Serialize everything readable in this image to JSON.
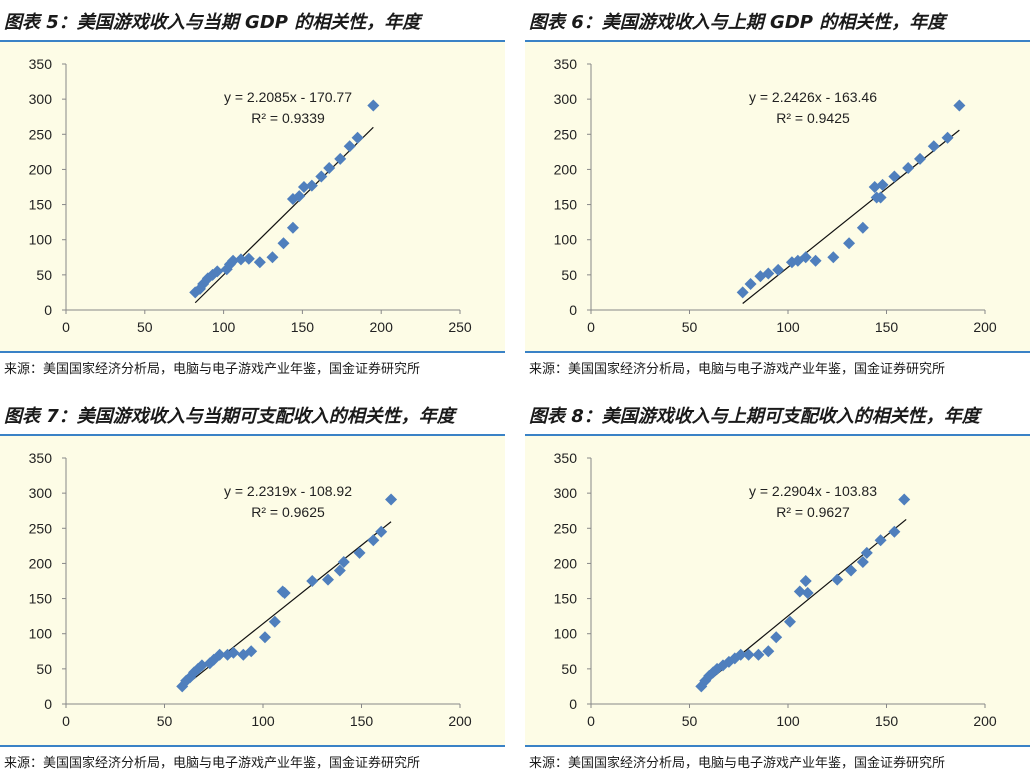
{
  "chart_data": [
    {
      "type": "scatter",
      "title": "图表 5：美国游戏收入与当期 GDP 的相关性，年度",
      "source": "来源：美国国家经济分析局，电脑与电子游戏产业年鉴，国金证券研究所",
      "xlim": [
        0,
        250
      ],
      "ylim": [
        0,
        350
      ],
      "xticks": [
        0,
        50,
        100,
        150,
        200,
        250
      ],
      "yticks": [
        0,
        50,
        100,
        150,
        200,
        250,
        300,
        350
      ],
      "equation": "y = 2.2085x - 170.77",
      "r_squared": "R² = 0.9339",
      "trendline": {
        "slope": 2.2085,
        "intercept": -170.77,
        "x_range": [
          82,
          195
        ]
      },
      "marker_color": "#4f7fbd",
      "points": [
        [
          82,
          25
        ],
        [
          85,
          30
        ],
        [
          87,
          37
        ],
        [
          90,
          45
        ],
        [
          93,
          50
        ],
        [
          96,
          55
        ],
        [
          102,
          58
        ],
        [
          104,
          65
        ],
        [
          106,
          70
        ],
        [
          111,
          72
        ],
        [
          116,
          73
        ],
        [
          123,
          68
        ],
        [
          131,
          75
        ],
        [
          138,
          95
        ],
        [
          144,
          117
        ],
        [
          144,
          158
        ],
        [
          148,
          162
        ],
        [
          151,
          175
        ],
        [
          156,
          177
        ],
        [
          162,
          190
        ],
        [
          167,
          202
        ],
        [
          174,
          215
        ],
        [
          180,
          233
        ],
        [
          185,
          245
        ],
        [
          195,
          291
        ]
      ]
    },
    {
      "type": "scatter",
      "title": "图表 6：美国游戏收入与上期 GDP 的相关性，年度",
      "source": "来源：美国国家经济分析局，电脑与电子游戏产业年鉴，国金证券研究所",
      "xlim": [
        0,
        200
      ],
      "ylim": [
        0,
        350
      ],
      "xticks": [
        0,
        50,
        100,
        150,
        200
      ],
      "yticks": [
        0,
        50,
        100,
        150,
        200,
        250,
        300,
        350
      ],
      "equation": "y = 2.2426x - 163.46",
      "r_squared": "R² = 0.9425",
      "trendline": {
        "slope": 2.2426,
        "intercept": -163.46,
        "x_range": [
          77,
          187
        ]
      },
      "marker_color": "#4f7fbd",
      "points": [
        [
          77,
          25
        ],
        [
          81,
          37
        ],
        [
          86,
          48
        ],
        [
          90,
          52
        ],
        [
          95,
          57
        ],
        [
          102,
          68
        ],
        [
          105,
          70
        ],
        [
          109,
          75
        ],
        [
          114,
          70
        ],
        [
          123,
          75
        ],
        [
          131,
          95
        ],
        [
          138,
          117
        ],
        [
          144,
          175
        ],
        [
          145,
          160
        ],
        [
          147,
          160
        ],
        [
          148,
          178
        ],
        [
          154,
          190
        ],
        [
          161,
          202
        ],
        [
          167,
          215
        ],
        [
          174,
          233
        ],
        [
          181,
          245
        ],
        [
          187,
          291
        ]
      ]
    },
    {
      "type": "scatter",
      "title": "图表 7：美国游戏收入与当期可支配收入的相关性，年度",
      "source": "来源：美国国家经济分析局，电脑与电子游戏产业年鉴，国金证券研究所",
      "xlim": [
        0,
        200
      ],
      "ylim": [
        0,
        350
      ],
      "xticks": [
        0,
        50,
        100,
        150,
        200
      ],
      "yticks": [
        0,
        50,
        100,
        150,
        200,
        250,
        300,
        350
      ],
      "equation": "y = 2.2319x - 108.92",
      "r_squared": "R² = 0.9625",
      "trendline": {
        "slope": 2.2319,
        "intercept": -108.92,
        "x_range": [
          60,
          165
        ]
      },
      "marker_color": "#4f7fbd",
      "points": [
        [
          59,
          25
        ],
        [
          61,
          33
        ],
        [
          63,
          38
        ],
        [
          65,
          45
        ],
        [
          67,
          50
        ],
        [
          69,
          55
        ],
        [
          73,
          58
        ],
        [
          75,
          63
        ],
        [
          78,
          70
        ],
        [
          82,
          70
        ],
        [
          85,
          73
        ],
        [
          90,
          70
        ],
        [
          94,
          75
        ],
        [
          101,
          95
        ],
        [
          106,
          117
        ],
        [
          110,
          160
        ],
        [
          111,
          158
        ],
        [
          125,
          175
        ],
        [
          133,
          177
        ],
        [
          139,
          190
        ],
        [
          141,
          202
        ],
        [
          149,
          215
        ],
        [
          156,
          233
        ],
        [
          160,
          245
        ],
        [
          165,
          291
        ]
      ]
    },
    {
      "type": "scatter",
      "title": "图表 8：美国游戏收入与上期可支配收入的相关性，年度",
      "source": "来源：美国国家经济分析局，电脑与电子游戏产业年鉴，国金证券研究所",
      "xlim": [
        0,
        200
      ],
      "ylim": [
        0,
        350
      ],
      "xticks": [
        0,
        50,
        100,
        150,
        200
      ],
      "yticks": [
        0,
        50,
        100,
        150,
        200,
        250,
        300,
        350
      ],
      "equation": "y = 2.2904x - 103.83",
      "r_squared": "R² = 0.9627",
      "trendline": {
        "slope": 2.2904,
        "intercept": -103.83,
        "x_range": [
          56,
          160
        ]
      },
      "marker_color": "#4f7fbd",
      "points": [
        [
          56,
          25
        ],
        [
          58,
          33
        ],
        [
          60,
          40
        ],
        [
          62,
          45
        ],
        [
          64,
          50
        ],
        [
          67,
          55
        ],
        [
          70,
          60
        ],
        [
          73,
          65
        ],
        [
          76,
          70
        ],
        [
          80,
          70
        ],
        [
          85,
          70
        ],
        [
          90,
          75
        ],
        [
          94,
          95
        ],
        [
          101,
          117
        ],
        [
          106,
          160
        ],
        [
          109,
          175
        ],
        [
          110,
          158
        ],
        [
          125,
          177
        ],
        [
          132,
          190
        ],
        [
          138,
          202
        ],
        [
          140,
          215
        ],
        [
          147,
          233
        ],
        [
          154,
          245
        ],
        [
          159,
          291
        ]
      ]
    }
  ]
}
